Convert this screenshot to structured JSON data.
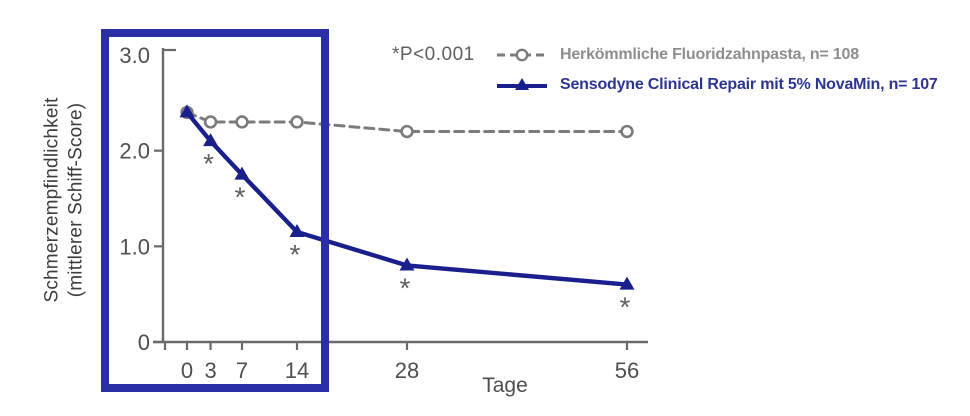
{
  "figure": {
    "p_annotation": "*P<0.001",
    "y_axis_title_line1": "Schmerzempfindlichkeit",
    "y_axis_title_line2": "(mittlerer Schiff-Score)",
    "x_axis_title": "Tage"
  },
  "legend": {
    "items": [
      {
        "label": "Herkömmliche Fluoridzahnpasta, n= 108",
        "marker": "open-circle-dashed-line",
        "color": "#7b7b7b"
      },
      {
        "label": "Sensodyne Clinical Repair mit 5% NovaMin, n= 107",
        "marker": "filled-triangle-solid-line",
        "color": "#1a1f8e"
      }
    ]
  },
  "chart_data": {
    "type": "line",
    "x": [
      0,
      3,
      7,
      14,
      28,
      56
    ],
    "x_ticklabels": [
      "0",
      "3",
      "7",
      "14",
      "28",
      "56"
    ],
    "xlabel": "Tage",
    "y_ticks": [
      0,
      1.0,
      2.0,
      3.0
    ],
    "y_ticklabels": [
      "0",
      "1.0",
      "2.0",
      "3.0"
    ],
    "ylim": [
      0,
      3.0
    ],
    "ylabel": "Schmerzempfindlichkeit (mittlerer Schiff-Score)",
    "grid": false,
    "legend_position": "top-right",
    "series": [
      {
        "name": "Herkömmliche Fluoridzahnpasta, n= 108",
        "values": [
          2.4,
          2.3,
          2.3,
          2.3,
          2.2,
          2.2
        ],
        "line_style": "dashed",
        "marker": "open-circle",
        "color": "#7b7b7b"
      },
      {
        "name": "Sensodyne Clinical Repair mit 5% NovaMin, n= 107",
        "values": [
          2.4,
          2.1,
          1.75,
          1.15,
          0.8,
          0.6
        ],
        "line_style": "solid",
        "marker": "filled-triangle",
        "color": "#1a1f8e"
      }
    ],
    "significance": {
      "symbol": "*",
      "note": "*P<0.001",
      "days_marked": [
        3,
        7,
        14,
        28,
        56
      ],
      "applies_to_series": "Sensodyne Clinical Repair mit 5% NovaMin, n= 107"
    },
    "highlight_box": {
      "days_covered": [
        0,
        14
      ],
      "color": "#2a2fa6"
    }
  },
  "colors": {
    "axis": "#6a6a6a",
    "tick_labels": "#4f4f4f",
    "gray_series": "#7b7b7b",
    "navy_series": "#1a1f8e",
    "legend_gray_text": "#8e8e8e",
    "legend_navy_text": "#2c3590",
    "annotation_gray": "#5f5f5f",
    "highlight_box": "#2a2fa6",
    "background": "#ffffff"
  }
}
